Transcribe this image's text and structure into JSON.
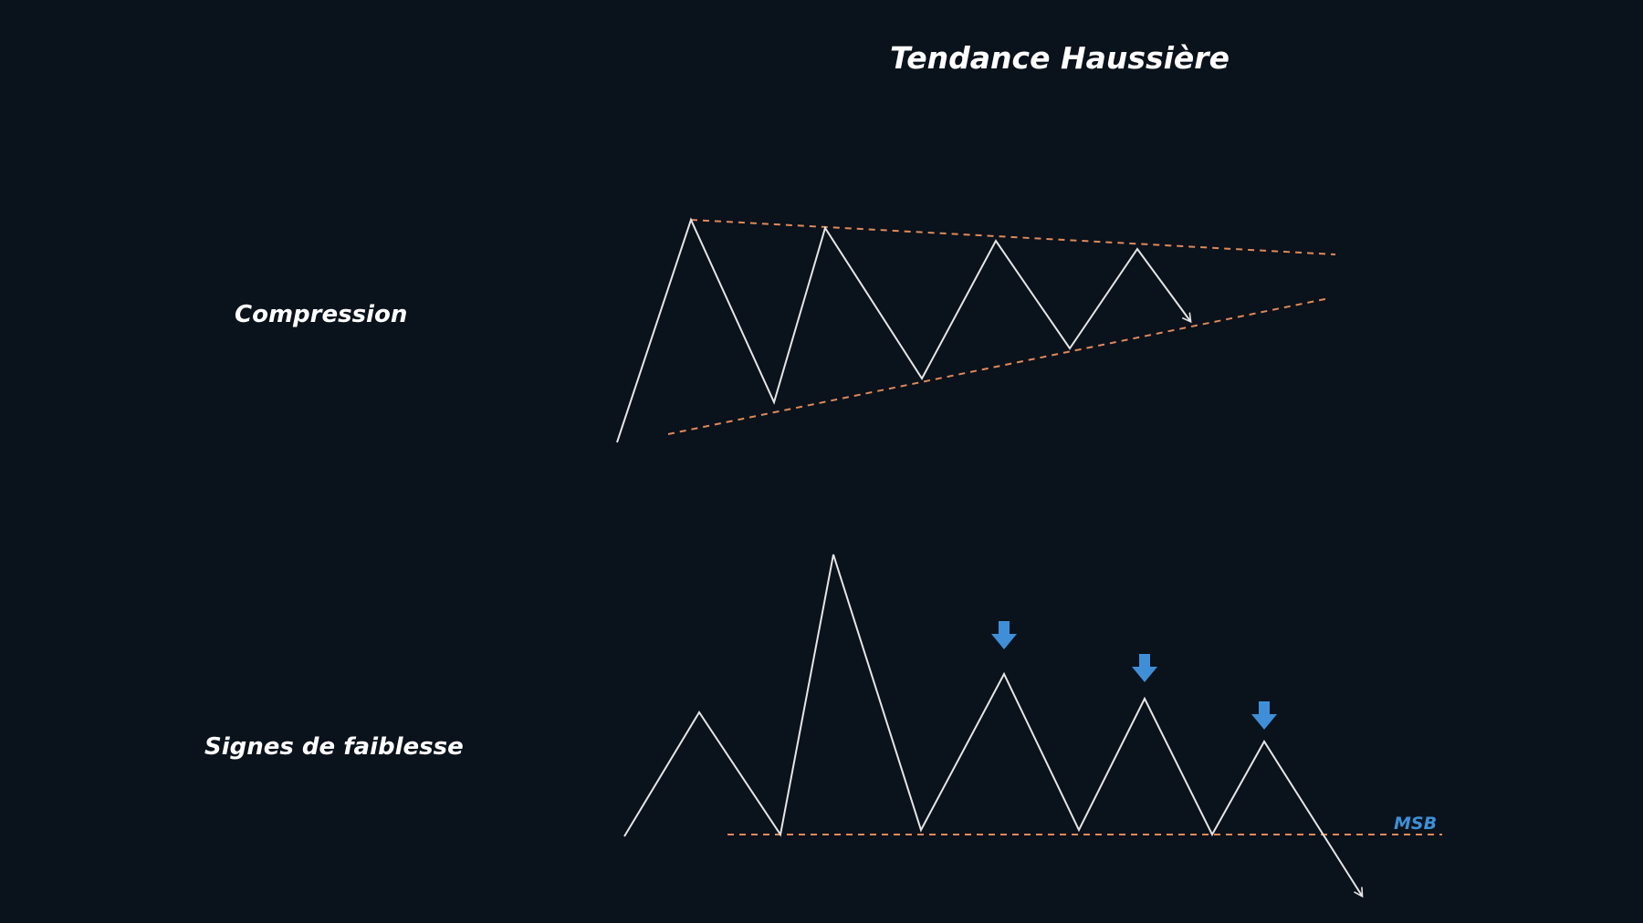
{
  "title": "Tendance Haussière",
  "sections": {
    "compression": {
      "label": "Compression"
    },
    "weakness": {
      "label": "Signes de faiblesse",
      "level_label": "MSB"
    }
  },
  "colors": {
    "background": "#0a121b",
    "price_line": "#e6e6e6",
    "trendline": "#e0895a",
    "accent": "#3f8fd8"
  },
  "icons": {
    "weakness_marker": "arrow-down-icon"
  }
}
